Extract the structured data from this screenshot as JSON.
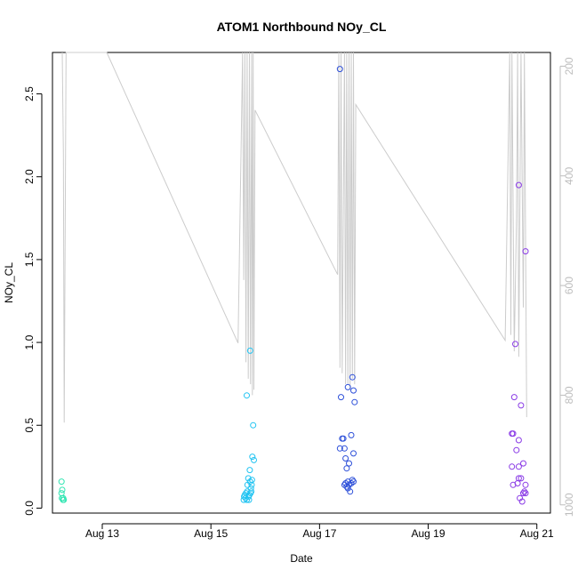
{
  "chart_data": {
    "type": "scatter",
    "title": "ATOM1 Northbound NOy_CL",
    "xlabel": "Date",
    "ylabel": "NOy_CL",
    "xlim": [
      "2016-08-12 02:00",
      "2016-08-21 06:00"
    ],
    "ylim": [
      -0.03,
      2.75
    ],
    "x_ticks": [
      {
        "label": "Aug 13",
        "value": "2016-08-13 00:00"
      },
      {
        "label": "Aug 15",
        "value": "2016-08-15 00:00"
      },
      {
        "label": "Aug 17",
        "value": "2016-08-17 00:00"
      },
      {
        "label": "Aug 19",
        "value": "2016-08-19 00:00"
      },
      {
        "label": "Aug 21",
        "value": "2016-08-21 00:00"
      }
    ],
    "y_ticks": [
      "0.0",
      "0.5",
      "1.0",
      "1.5",
      "2.0",
      "2.5"
    ],
    "secondary_axis": {
      "position": "right",
      "reversed": true,
      "lim": [
        175,
        1015
      ],
      "ticks": [
        "200",
        "400",
        "600",
        "800",
        "1000"
      ],
      "color": "#bdbdbd"
    },
    "grid": false,
    "series": [
      {
        "color": "#33e6b3",
        "points": [
          [
            "2016-08-12 06:00",
            0.16
          ],
          [
            "2016-08-12 06:20",
            0.11
          ],
          [
            "2016-08-12 06:00",
            0.09
          ],
          [
            "2016-08-12 06:10",
            0.06
          ],
          [
            "2016-08-12 06:40",
            0.05
          ],
          [
            "2016-08-12 06:45",
            0.06
          ],
          [
            "2016-08-12 07:00",
            0.05
          ]
        ]
      },
      {
        "color": "#23c4f2",
        "points": [
          [
            "2016-08-15 14:30",
            0.05
          ],
          [
            "2016-08-15 14:40",
            0.07
          ],
          [
            "2016-08-15 15:00",
            0.08
          ],
          [
            "2016-08-15 15:20",
            0.06
          ],
          [
            "2016-08-15 15:30",
            0.09
          ],
          [
            "2016-08-15 15:50",
            0.05
          ],
          [
            "2016-08-15 16:00",
            0.1
          ],
          [
            "2016-08-15 16:10",
            0.14
          ],
          [
            "2016-08-15 16:30",
            0.18
          ],
          [
            "2016-08-15 16:40",
            0.07
          ],
          [
            "2016-08-15 16:50",
            0.05
          ],
          [
            "2016-08-15 17:00",
            0.08
          ],
          [
            "2016-08-15 17:10",
            0.23
          ],
          [
            "2016-08-15 17:20",
            0.16
          ],
          [
            "2016-08-15 17:30",
            0.09
          ],
          [
            "2016-08-15 17:40",
            0.12
          ],
          [
            "2016-08-15 17:50",
            0.1
          ],
          [
            "2016-08-15 18:00",
            0.14
          ],
          [
            "2016-08-15 18:10",
            0.17
          ],
          [
            "2016-08-15 18:20",
            0.31
          ],
          [
            "2016-08-15 18:40",
            0.5
          ],
          [
            "2016-08-15 19:00",
            0.29
          ],
          [
            "2016-08-15 17:20",
            0.95
          ],
          [
            "2016-08-15 15:50",
            0.68
          ]
        ]
      },
      {
        "color": "#2e50d9",
        "points": [
          [
            "2016-08-17 09:00",
            2.65
          ],
          [
            "2016-08-17 09:30",
            0.67
          ],
          [
            "2016-08-17 12:30",
            0.73
          ],
          [
            "2016-08-17 14:30",
            0.79
          ],
          [
            "2016-08-17 15:00",
            0.71
          ],
          [
            "2016-08-17 15:30",
            0.64
          ],
          [
            "2016-08-17 09:00",
            0.36
          ],
          [
            "2016-08-17 10:00",
            0.42
          ],
          [
            "2016-08-17 10:30",
            0.42
          ],
          [
            "2016-08-17 11:00",
            0.36
          ],
          [
            "2016-08-17 11:30",
            0.3
          ],
          [
            "2016-08-17 12:00",
            0.24
          ],
          [
            "2016-08-17 13:00",
            0.27
          ],
          [
            "2016-08-17 14:00",
            0.44
          ],
          [
            "2016-08-17 15:00",
            0.33
          ],
          [
            "2016-08-17 11:30",
            0.15
          ],
          [
            "2016-08-17 12:00",
            0.13
          ],
          [
            "2016-08-17 12:30",
            0.16
          ],
          [
            "2016-08-17 13:00",
            0.14
          ],
          [
            "2016-08-17 13:30",
            0.1
          ],
          [
            "2016-08-17 14:00",
            0.15
          ],
          [
            "2016-08-17 14:30",
            0.17
          ],
          [
            "2016-08-17 15:00",
            0.16
          ],
          [
            "2016-08-17 11:00",
            0.14
          ],
          [
            "2016-08-17 12:30",
            0.12
          ]
        ]
      },
      {
        "color": "#8a3be6",
        "points": [
          [
            "2016-08-20 13:00",
            0.45
          ],
          [
            "2016-08-20 13:30",
            0.45
          ],
          [
            "2016-08-20 14:00",
            0.67
          ],
          [
            "2016-08-20 14:30",
            0.99
          ],
          [
            "2016-08-20 16:00",
            1.95
          ],
          [
            "2016-08-20 19:00",
            1.55
          ],
          [
            "2016-08-20 17:00",
            0.62
          ],
          [
            "2016-08-20 16:00",
            0.41
          ],
          [
            "2016-08-20 15:00",
            0.35
          ],
          [
            "2016-08-20 13:00",
            0.25
          ],
          [
            "2016-08-20 16:00",
            0.25
          ],
          [
            "2016-08-20 18:00",
            0.27
          ],
          [
            "2016-08-20 13:30",
            0.14
          ],
          [
            "2016-08-20 15:30",
            0.15
          ],
          [
            "2016-08-20 16:00",
            0.18
          ],
          [
            "2016-08-20 17:00",
            0.18
          ],
          [
            "2016-08-20 19:00",
            0.14
          ],
          [
            "2016-08-20 18:30",
            0.1
          ],
          [
            "2016-08-20 19:00",
            0.09
          ],
          [
            "2016-08-20 16:30",
            0.06
          ],
          [
            "2016-08-20 17:30",
            0.04
          ],
          [
            "2016-08-20 18:00",
            0.09
          ]
        ]
      }
    ],
    "secondary_line": {
      "color": "#cccccc",
      "points": [
        [
          "2016-08-12 06:20",
          175
        ],
        [
          "2016-08-12 06:50",
          360
        ],
        [
          "2016-08-12 07:10",
          850
        ],
        [
          "2016-08-12 08:00",
          175
        ],
        [
          "2016-08-13 02:00",
          175
        ],
        [
          "2016-08-15 12:00",
          705
        ],
        [
          "2016-08-15 14:00",
          175
        ],
        [
          "2016-08-15 14:30",
          590
        ],
        [
          "2016-08-15 15:00",
          175
        ],
        [
          "2016-08-15 15:30",
          740
        ],
        [
          "2016-08-15 16:00",
          175
        ],
        [
          "2016-08-15 16:30",
          770
        ],
        [
          "2016-08-15 17:00",
          175
        ],
        [
          "2016-08-15 17:30",
          780
        ],
        [
          "2016-08-15 18:00",
          175
        ],
        [
          "2016-08-15 18:20",
          800
        ],
        [
          "2016-08-15 18:40",
          175
        ],
        [
          "2016-08-15 19:00",
          790
        ],
        [
          "2016-08-15 19:30",
          280
        ],
        [
          "2016-08-17 08:00",
          580
        ],
        [
          "2016-08-17 08:30",
          175
        ],
        [
          "2016-08-17 09:00",
          750
        ],
        [
          "2016-08-17 09:30",
          175
        ],
        [
          "2016-08-17 10:00",
          760
        ],
        [
          "2016-08-17 11:00",
          175
        ],
        [
          "2016-08-17 11:30",
          780
        ],
        [
          "2016-08-17 12:00",
          175
        ],
        [
          "2016-08-17 12:30",
          780
        ],
        [
          "2016-08-17 13:00",
          175
        ],
        [
          "2016-08-17 13:30",
          790
        ],
        [
          "2016-08-17 14:00",
          175
        ],
        [
          "2016-08-17 14:30",
          770
        ],
        [
          "2016-08-17 15:00",
          175
        ],
        [
          "2016-08-17 15:30",
          780
        ],
        [
          "2016-08-17 16:00",
          270
        ],
        [
          "2016-08-20 10:00",
          700
        ],
        [
          "2016-08-20 12:00",
          175
        ],
        [
          "2016-08-20 12:30",
          690
        ],
        [
          "2016-08-20 13:00",
          175
        ],
        [
          "2016-08-20 14:00",
          720
        ],
        [
          "2016-08-20 15:00",
          480
        ],
        [
          "2016-08-20 15:30",
          175
        ],
        [
          "2016-08-20 16:00",
          730
        ],
        [
          "2016-08-20 17:00",
          175
        ],
        [
          "2016-08-20 18:00",
          640
        ],
        [
          "2016-08-20 18:30",
          175
        ],
        [
          "2016-08-20 19:30",
          840
        ]
      ]
    }
  }
}
